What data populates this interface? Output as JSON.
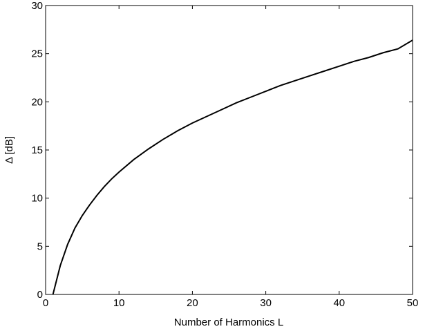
{
  "chart_data": {
    "type": "line",
    "title": "",
    "xlabel": "Number of Harmonics L",
    "ylabel": "Δ [dB]",
    "xlim": [
      0,
      50
    ],
    "ylim": [
      0,
      30
    ],
    "xticks": [
      0,
      10,
      20,
      30,
      40,
      50
    ],
    "yticks": [
      0,
      5,
      10,
      15,
      20,
      25,
      30
    ],
    "grid": false,
    "legend": "none",
    "line_color": "#000000",
    "series": [
      {
        "x": [
          1,
          2,
          3,
          4,
          5,
          6,
          7,
          8,
          9,
          10,
          12,
          14,
          16,
          18,
          20,
          22,
          24,
          26,
          28,
          30,
          32,
          34,
          36,
          38,
          40,
          42,
          44,
          46,
          48,
          50
        ],
        "y": [
          0.0,
          3.0,
          5.2,
          6.9,
          8.2,
          9.3,
          10.3,
          11.2,
          12.0,
          12.7,
          14.0,
          15.1,
          16.1,
          17.0,
          17.8,
          18.5,
          19.2,
          19.9,
          20.5,
          21.1,
          21.7,
          22.2,
          22.7,
          23.2,
          23.7,
          24.2,
          24.6,
          25.1,
          25.5,
          26.4
        ]
      }
    ]
  }
}
